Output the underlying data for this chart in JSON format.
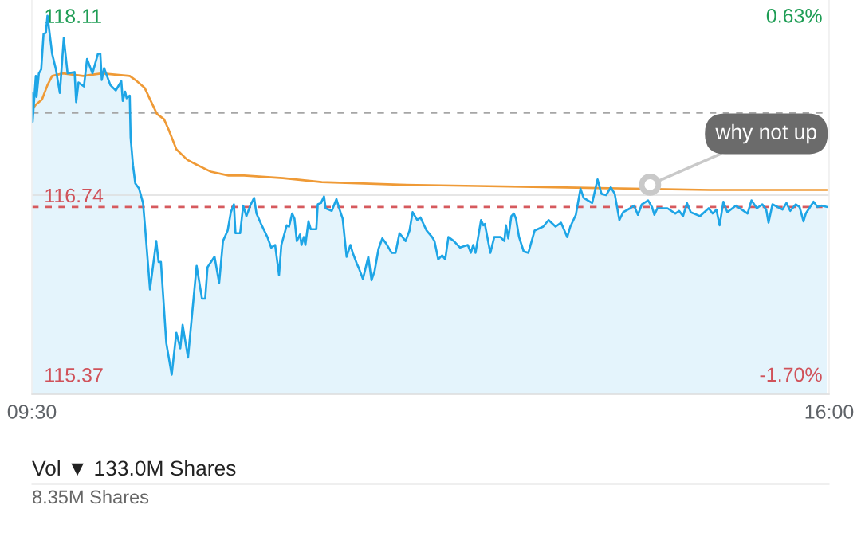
{
  "chart_data": [
    {
      "type": "line",
      "xlim": [
        9.5,
        16
      ],
      "xticks": [
        {
          "value": 9.5,
          "label": "09:30"
        },
        {
          "value": 16,
          "label": "16:00"
        }
      ],
      "ylim": [
        115.22,
        118.23
      ],
      "yticks": [
        115.37,
        116.74,
        118.11
      ],
      "y2lim": [
        -1.83,
        0.73
      ],
      "y2ticks": [
        {
          "value": -1.7,
          "label": "-1.70%"
        },
        {
          "value": 0.63,
          "label": "0.63%"
        }
      ],
      "grid": false,
      "series": [
        {
          "type": "area",
          "color": "#1ea5e6",
          "x": [
            9.5,
            9.506,
            9.532,
            9.538,
            9.557,
            9.576,
            9.595,
            9.614,
            9.627,
            9.665,
            9.696,
            9.728,
            9.76,
            9.791,
            9.848,
            9.861,
            9.88,
            9.924,
            9.95,
            9.994,
            10.039,
            10.058,
            10.07,
            10.089,
            10.14,
            10.184,
            10.229,
            10.241,
            10.26,
            10.273,
            10.298,
            10.305,
            10.324,
            10.343,
            10.374,
            10.406,
            10.425,
            10.463,
            10.514,
            10.533,
            10.552,
            10.596,
            10.64,
            10.678,
            10.71,
            10.729,
            10.773,
            10.843,
            10.887,
            10.913,
            10.932,
            10.989,
            11.027,
            11.058,
            11.096,
            11.122,
            11.147,
            11.16,
            11.198,
            11.223,
            11.249,
            11.28,
            11.312,
            11.331,
            11.369,
            11.42,
            11.451,
            11.483,
            11.515,
            11.534,
            11.578,
            11.597,
            11.622,
            11.641,
            11.66,
            11.686,
            11.698,
            11.717,
            11.73,
            11.755,
            11.774,
            11.819,
            11.831,
            11.857,
            11.882,
            11.895,
            11.945,
            11.983,
            12.009,
            12.034,
            12.066,
            12.097,
            12.116,
            12.148,
            12.167,
            12.199,
            12.243,
            12.269,
            12.294,
            12.326,
            12.357,
            12.389,
            12.433,
            12.465,
            12.497,
            12.547,
            12.579,
            12.604,
            12.642,
            12.668,
            12.718,
            12.763,
            12.782,
            12.813,
            12.845,
            12.87,
            12.896,
            12.94,
            12.991,
            13.054,
            13.079,
            13.098,
            13.117,
            13.162,
            13.181,
            13.193,
            13.238,
            13.27,
            13.32,
            13.352,
            13.365,
            13.384,
            13.409,
            13.429,
            13.447,
            13.472,
            13.51,
            13.548,
            13.599,
            13.669,
            13.713,
            13.77,
            13.814,
            13.865,
            13.89,
            13.935,
            13.973,
            13.998,
            14.068,
            14.112,
            14.144,
            14.182,
            14.22,
            14.252,
            14.29,
            14.321,
            14.378,
            14.41,
            14.441,
            14.473,
            14.524,
            14.556,
            14.575,
            14.6,
            14.682,
            14.746,
            14.777,
            14.809,
            14.841,
            14.872,
            14.948,
            15.018,
            15.05,
            15.081,
            15.107,
            15.138,
            15.17,
            15.24,
            15.335,
            15.367,
            15.411,
            15.455,
            15.487,
            15.506,
            15.538,
            15.62,
            15.652,
            15.683,
            15.728,
            15.759,
            15.791,
            15.81,
            15.873,
            15.905,
            15.937,
            15.981
          ],
          "values": [
            117.52,
            117.3,
            117.65,
            117.49,
            117.67,
            117.7,
            117.97,
            117.98,
            118.11,
            117.82,
            117.7,
            117.52,
            117.94,
            117.67,
            117.68,
            117.45,
            117.6,
            117.57,
            117.78,
            117.67,
            117.82,
            117.82,
            117.62,
            117.71,
            117.58,
            117.54,
            117.61,
            117.46,
            117.53,
            117.48,
            117.5,
            117.18,
            116.97,
            116.83,
            116.79,
            116.68,
            116.47,
            116.02,
            116.39,
            116.23,
            116.23,
            115.61,
            115.37,
            115.69,
            115.57,
            115.75,
            115.5,
            116.2,
            115.95,
            115.95,
            116.19,
            116.27,
            116.07,
            116.39,
            116.47,
            116.61,
            116.67,
            116.45,
            116.45,
            116.66,
            116.58,
            116.66,
            116.72,
            116.6,
            116.52,
            116.42,
            116.34,
            116.36,
            116.13,
            116.36,
            116.51,
            116.5,
            116.6,
            116.56,
            116.39,
            116.44,
            116.36,
            116.42,
            116.36,
            116.54,
            116.48,
            116.48,
            116.67,
            116.68,
            116.73,
            116.64,
            116.62,
            116.71,
            116.63,
            116.56,
            116.27,
            116.36,
            116.3,
            116.22,
            116.18,
            116.1,
            116.27,
            116.09,
            116.16,
            116.33,
            116.41,
            116.37,
            116.3,
            116.3,
            116.45,
            116.39,
            116.47,
            116.61,
            116.55,
            116.57,
            116.47,
            116.42,
            116.39,
            116.25,
            116.28,
            116.25,
            116.42,
            116.39,
            116.34,
            116.36,
            116.3,
            116.36,
            116.3,
            116.55,
            116.51,
            116.52,
            116.3,
            116.42,
            116.42,
            116.39,
            116.51,
            116.41,
            116.58,
            116.6,
            116.56,
            116.42,
            116.31,
            116.3,
            116.47,
            116.5,
            116.55,
            116.5,
            116.53,
            116.42,
            116.5,
            116.59,
            116.79,
            116.72,
            116.68,
            116.86,
            116.75,
            116.74,
            116.8,
            116.75,
            116.55,
            116.61,
            116.64,
            116.66,
            116.59,
            116.67,
            116.7,
            116.65,
            116.59,
            116.64,
            116.64,
            116.6,
            116.62,
            116.58,
            116.68,
            116.61,
            116.58,
            116.64,
            116.6,
            116.63,
            116.51,
            116.69,
            116.61,
            116.66,
            116.6,
            116.7,
            116.64,
            116.67,
            116.63,
            116.53,
            116.67,
            116.63,
            116.68,
            116.62,
            116.67,
            116.65,
            116.54,
            116.6,
            116.69,
            116.65,
            116.66,
            116.65
          ]
        },
        {
          "type": "line",
          "color": "#ef9a36",
          "x": [
            9.5,
            9.532,
            9.582,
            9.627,
            9.665,
            9.753,
            9.918,
            10.07,
            10.298,
            10.343,
            10.419,
            10.469,
            10.52,
            10.577,
            10.615,
            10.678,
            10.767,
            10.849,
            10.957,
            11.103,
            11.23,
            11.546,
            11.863,
            12.497,
            13.13,
            13.764,
            14.397,
            15.031,
            15.981
          ],
          "values": [
            117.39,
            117.43,
            117.47,
            117.58,
            117.65,
            117.67,
            117.65,
            117.67,
            117.65,
            117.62,
            117.56,
            117.46,
            117.36,
            117.32,
            117.24,
            117.09,
            117.01,
            116.97,
            116.92,
            116.89,
            116.89,
            116.87,
            116.84,
            116.82,
            116.81,
            116.8,
            116.79,
            116.78,
            116.78
          ]
        }
      ],
      "ref_lines": [
        {
          "axis": "y",
          "value": 117.37,
          "color": "#a6a6a6",
          "line_style": "dashed"
        },
        {
          "axis": "y",
          "value": 116.65,
          "color": "#d65a5e",
          "line_style": "dashed"
        },
        {
          "axis": "y",
          "value": 116.74,
          "color": "#dedede",
          "line_style": "solid"
        }
      ],
      "annotations": [
        {
          "text": "why not up",
          "x": 14.54,
          "y": 116.82
        }
      ]
    },
    {
      "type": "other",
      "title": "Vol ▼ 133.0M Shares",
      "annotations": [
        "8.35M Shares"
      ]
    }
  ]
}
